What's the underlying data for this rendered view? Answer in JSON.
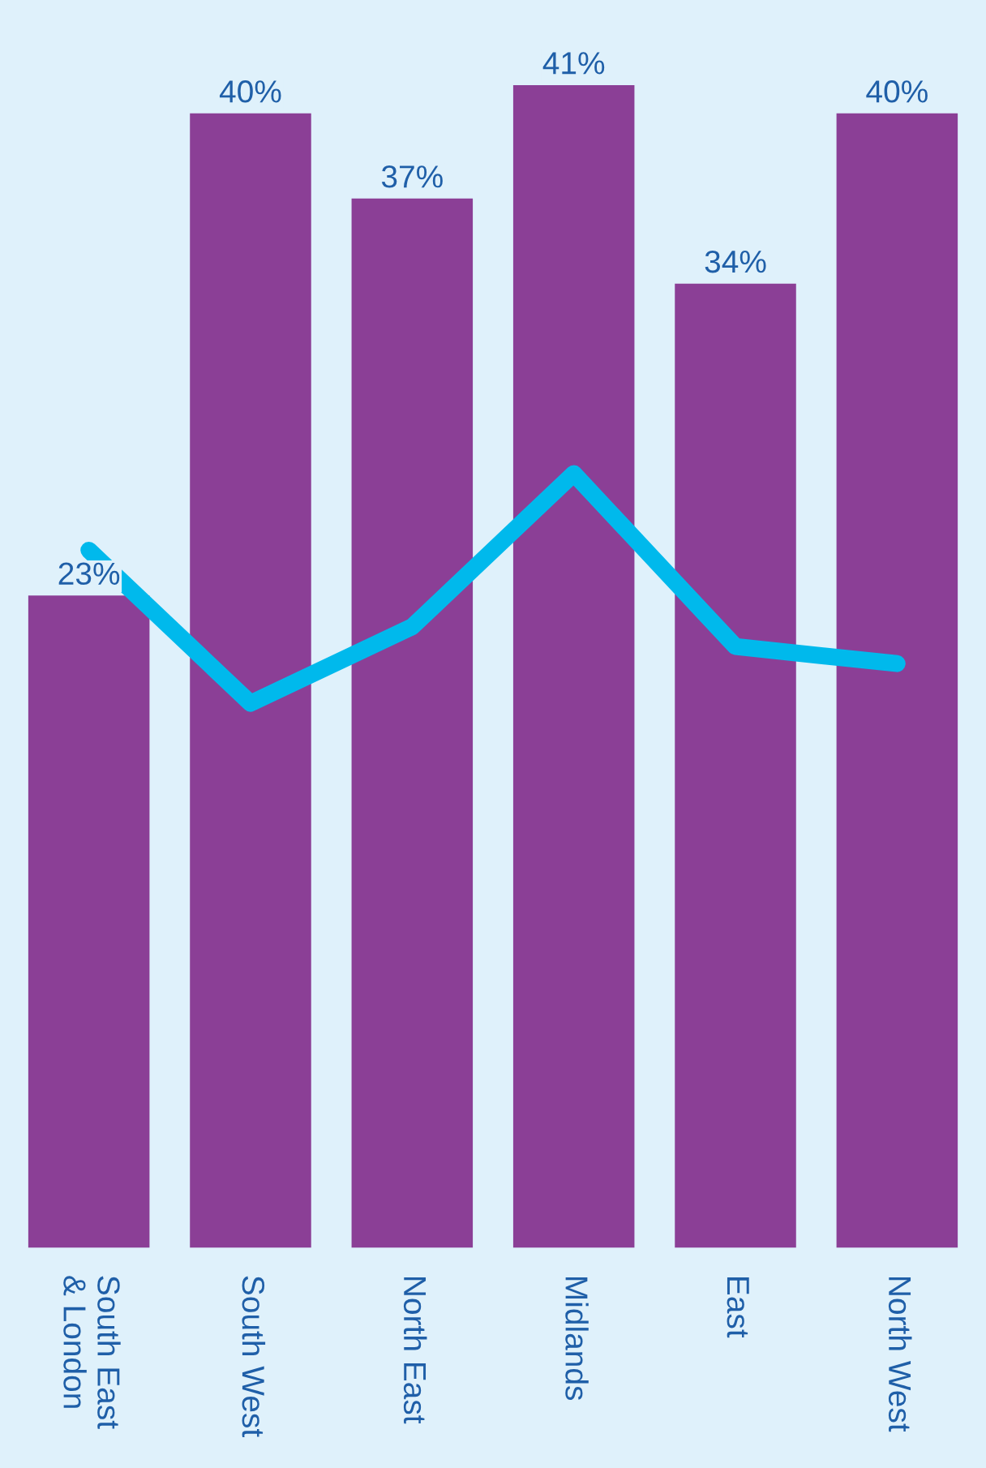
{
  "chart_data": {
    "type": "bar",
    "categories": [
      "South East\n& London",
      "South West",
      "North East",
      "Midlands",
      "East",
      "North West"
    ],
    "series": [
      {
        "color": "#8b3f96",
        "values": [
          23,
          40,
          37,
          41,
          34,
          40
        ],
        "value_labels": [
          "23%",
          "40%",
          "37%",
          "41%",
          "34%",
          "40%"
        ]
      },
      {
        "type": "line",
        "color": "#00b9ec",
        "values": [
          24.6,
          19.2,
          21.9,
          27.3,
          21.2,
          20.6
        ]
      }
    ],
    "ylim": [
      0,
      44
    ],
    "tick_labels": "x",
    "grid": false,
    "legend": false,
    "marker": "none",
    "line_style": "solid"
  }
}
